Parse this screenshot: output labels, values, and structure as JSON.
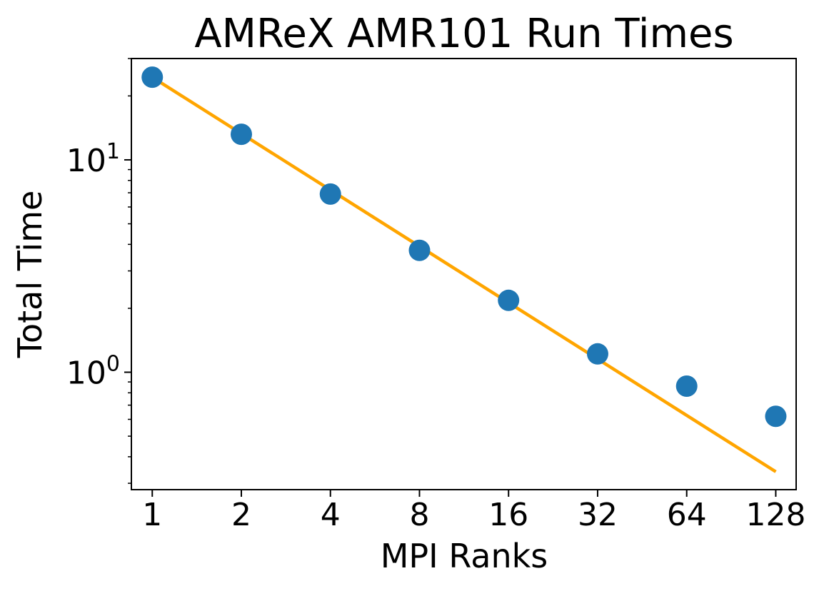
{
  "chart_data": {
    "type": "scatter",
    "title": "AMReX AMR101 Run Times",
    "xlabel": "MPI Ranks",
    "ylabel": "Total Time",
    "x_scale": "log2",
    "y_scale": "log10",
    "x_ticks": [
      1,
      2,
      4,
      8,
      16,
      32,
      64,
      128
    ],
    "x_tick_labels": [
      "1",
      "2",
      "4",
      "8",
      "16",
      "32",
      "64",
      "128"
    ],
    "y_major_ticks": [
      {
        "value": 1,
        "base": "10",
        "exp": "0"
      },
      {
        "value": 10,
        "base": "10",
        "exp": "1"
      }
    ],
    "y_minor_ticks": [
      0.3,
      0.4,
      0.5,
      0.6,
      0.7,
      0.8,
      0.9,
      2,
      3,
      4,
      5,
      6,
      7,
      8,
      9,
      20,
      30
    ],
    "xlim": [
      0.85,
      150
    ],
    "ylim": [
      0.28,
      30
    ],
    "grid": false,
    "series": [
      {
        "kind": "scatter",
        "color": "#1f77b4",
        "x": [
          1,
          2,
          4,
          8,
          16,
          32,
          64,
          128
        ],
        "y": [
          24.5,
          13.2,
          6.9,
          3.75,
          2.18,
          1.22,
          0.86,
          0.62
        ]
      },
      {
        "kind": "line",
        "color": "#ffa500",
        "x": [
          1,
          128
        ],
        "y": [
          24.5,
          0.34
        ]
      }
    ]
  }
}
